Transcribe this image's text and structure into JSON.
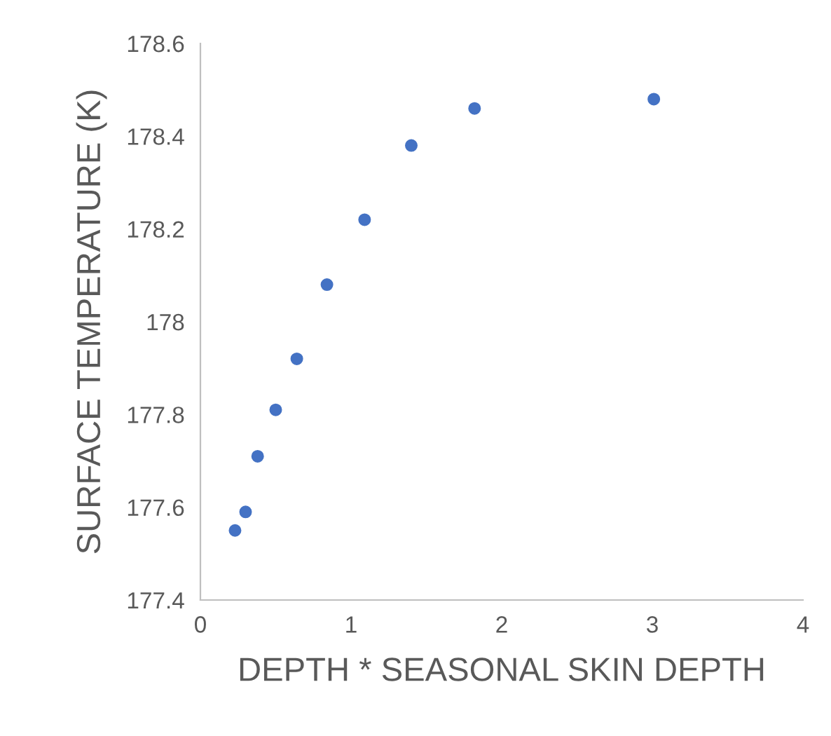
{
  "chart_data": {
    "type": "scatter",
    "xlabel": "DEPTH * SEASONAL SKIN DEPTH",
    "ylabel": "SURFACE TEMPERATURE (K)",
    "x": [
      0.23,
      0.3,
      0.38,
      0.5,
      0.64,
      0.84,
      1.09,
      1.4,
      1.82,
      3.01
    ],
    "series": [
      {
        "color": "#4472c4",
        "values": [
          177.55,
          177.59,
          177.71,
          177.81,
          177.92,
          178.08,
          178.22,
          178.38,
          178.46,
          178.48
        ]
      }
    ],
    "xlim": [
      0,
      4
    ],
    "xticks": [
      0,
      1,
      2,
      3,
      4
    ],
    "ylim": [
      177.4,
      178.6
    ],
    "yticks": [
      {
        "value": 177.4,
        "label": "177.4"
      },
      {
        "value": 177.6,
        "label": "177.6"
      },
      {
        "value": 177.8,
        "label": "177.8"
      },
      {
        "value": 178,
        "label": "178"
      },
      {
        "value": 178.2,
        "label": "178.2"
      },
      {
        "value": 178.4,
        "label": "178.4"
      },
      {
        "value": 178.6,
        "label": "178.6"
      }
    ],
    "grid": false,
    "marker": "circle"
  }
}
